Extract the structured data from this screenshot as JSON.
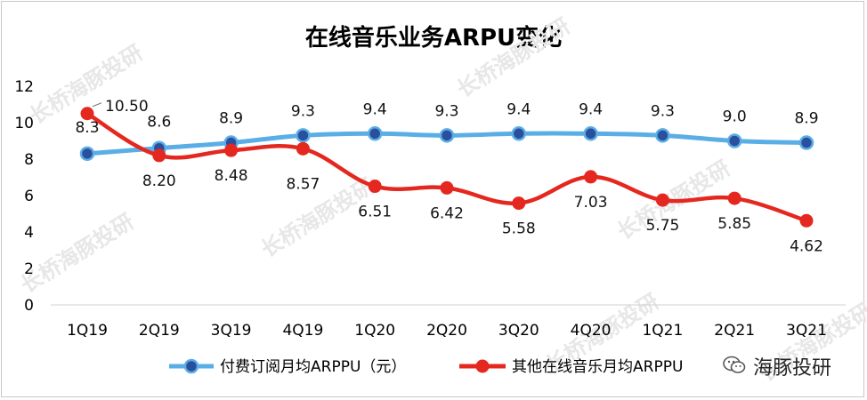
{
  "title": "在线音乐业务ARPU变化",
  "brand_mark": "海豚投研",
  "watermark_text": "长桥海豚投研",
  "chart_data": {
    "type": "line",
    "title": "在线音乐业务ARPU变化",
    "categories": [
      "1Q19",
      "2Q19",
      "3Q19",
      "4Q19",
      "1Q20",
      "2Q20",
      "3Q20",
      "4Q20",
      "1Q21",
      "2Q21",
      "3Q21"
    ],
    "ylim": [
      0,
      12
    ],
    "yticks": [
      "0",
      "2",
      "4",
      "6",
      "8",
      "10",
      "12"
    ],
    "legend_position": "bottom",
    "series": [
      {
        "name": "付费订阅月均ARPPU（元）",
        "color": "#5aaee6",
        "marker_color": "#2a4f9c",
        "values": [
          8.3,
          8.6,
          8.9,
          9.3,
          9.4,
          9.3,
          9.4,
          9.4,
          9.3,
          9.0,
          8.9
        ],
        "labels": [
          "8.3",
          "8.6",
          "8.9",
          "9.3",
          "9.4",
          "9.3",
          "9.4",
          "9.4",
          "9.3",
          "9.0",
          "8.9"
        ]
      },
      {
        "name": "其他在线音乐月均ARPPU",
        "color": "#e5281f",
        "marker_color": "#e5281f",
        "values": [
          10.5,
          8.2,
          8.48,
          8.57,
          6.51,
          6.42,
          5.58,
          7.03,
          5.75,
          5.85,
          4.62
        ],
        "labels": [
          "10.50",
          "8.20",
          "8.48",
          "8.57",
          "6.51",
          "6.42",
          "5.58",
          "7.03",
          "5.75",
          "5.85",
          "4.62"
        ]
      }
    ]
  }
}
